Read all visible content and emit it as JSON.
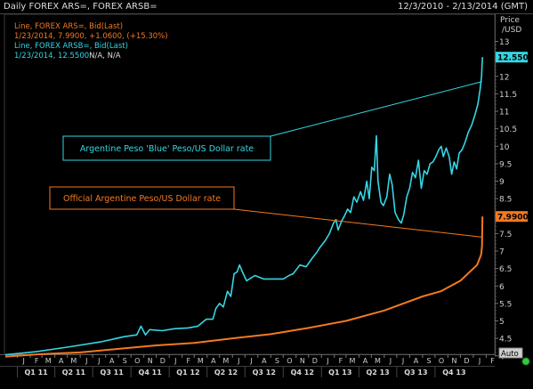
{
  "header": {
    "title": "Daily FOREX ARS=, FOREX ARSB=",
    "date_range": "12/3/2010 - 2/13/2014 (GMT)"
  },
  "legend": {
    "official_name": "Line, FOREX ARS=, Bid(Last)",
    "official_value": "1/23/2014, 7.9900, +1.0600, (+15.30%)",
    "blue_name": "Line, FOREX ARSB=, Bid(Last)",
    "blue_value_prefix": "1/23/2014, 12.5500",
    "blue_value_suffix": "N/A, N/A"
  },
  "price_label": "Price",
  "unit_label": "/USD",
  "auto_label": "Auto",
  "colors": {
    "official": "#f47920",
    "blue": "#35d6e4",
    "background": "#000000",
    "grid": "#2a2a2a"
  },
  "chart_data": {
    "type": "line",
    "title": "Daily FOREX ARS=, FOREX ARSB=",
    "ylabel": "Price /USD",
    "ylim": [
      3.9,
      13.5
    ],
    "yticks": [
      "4",
      "4.5",
      "5",
      "5.5",
      "6",
      "6.5",
      "7",
      "7.5",
      "8",
      "8.5",
      "9",
      "9.5",
      "10",
      "10.5",
      "11",
      "11.5",
      "12",
      "12.5",
      "13"
    ],
    "x_month_ticks": [
      "J",
      "F",
      "M",
      "A",
      "M",
      "J",
      "J",
      "A",
      "S",
      "O",
      "N",
      "D",
      "J",
      "F",
      "M",
      "A",
      "M",
      "J",
      "J",
      "A",
      "S",
      "O",
      "N",
      "D",
      "J",
      "F",
      "M",
      "A",
      "M",
      "J",
      "J",
      "A",
      "S",
      "O",
      "N",
      "D",
      "J",
      "F"
    ],
    "x_quarter_ticks": [
      "Q1 11",
      "Q2 11",
      "Q3 11",
      "Q4 11",
      "Q1 12",
      "Q2 12",
      "Q3 12",
      "Q4 12",
      "Q1 13",
      "Q2 13",
      "Q3 13",
      "Q4 13"
    ],
    "x_range": [
      "2010-12-03",
      "2014-02-13"
    ],
    "grid": false,
    "series": [
      {
        "name": "FOREX ARS=",
        "color": "#f47920",
        "last_value": "7.9900",
        "points": [
          [
            "2010-12-03",
            3.98
          ],
          [
            "2011-03-01",
            4.05
          ],
          [
            "2011-06-01",
            4.1
          ],
          [
            "2011-09-01",
            4.2
          ],
          [
            "2011-12-01",
            4.3
          ],
          [
            "2012-03-01",
            4.37
          ],
          [
            "2012-06-01",
            4.5
          ],
          [
            "2012-09-01",
            4.62
          ],
          [
            "2012-12-01",
            4.8
          ],
          [
            "2013-03-01",
            5.0
          ],
          [
            "2013-06-01",
            5.3
          ],
          [
            "2013-09-01",
            5.7
          ],
          [
            "2013-10-15",
            5.85
          ],
          [
            "2013-12-01",
            6.15
          ],
          [
            "2014-01-10",
            6.6
          ],
          [
            "2014-01-20",
            6.9
          ],
          [
            "2014-01-22",
            7.15
          ],
          [
            "2014-01-23",
            7.99
          ]
        ]
      },
      {
        "name": "FOREX ARSB=",
        "color": "#35d6e4",
        "last_value": "12.5500",
        "points": [
          [
            "2010-12-03",
            4.03
          ],
          [
            "2011-02-15",
            4.12
          ],
          [
            "2011-05-01",
            4.25
          ],
          [
            "2011-07-20",
            4.4
          ],
          [
            "2011-09-15",
            4.55
          ],
          [
            "2011-10-15",
            4.6
          ],
          [
            "2011-10-25",
            4.85
          ],
          [
            "2011-11-05",
            4.6
          ],
          [
            "2011-11-15",
            4.75
          ],
          [
            "2011-12-15",
            4.72
          ],
          [
            "2012-01-15",
            4.78
          ],
          [
            "2012-02-15",
            4.8
          ],
          [
            "2012-03-10",
            4.85
          ],
          [
            "2012-03-30",
            5.05
          ],
          [
            "2012-04-15",
            5.05
          ],
          [
            "2012-04-22",
            5.35
          ],
          [
            "2012-05-01",
            5.5
          ],
          [
            "2012-05-10",
            5.4
          ],
          [
            "2012-05-20",
            5.85
          ],
          [
            "2012-05-28",
            5.7
          ],
          [
            "2012-06-05",
            6.35
          ],
          [
            "2012-06-12",
            6.4
          ],
          [
            "2012-06-18",
            6.6
          ],
          [
            "2012-06-25",
            6.4
          ],
          [
            "2012-07-05",
            6.15
          ],
          [
            "2012-07-25",
            6.3
          ],
          [
            "2012-08-15",
            6.2
          ],
          [
            "2012-09-10",
            6.2
          ],
          [
            "2012-10-01",
            6.2
          ],
          [
            "2012-10-15",
            6.3
          ],
          [
            "2012-10-25",
            6.35
          ],
          [
            "2012-11-10",
            6.6
          ],
          [
            "2012-11-25",
            6.55
          ],
          [
            "2012-12-10",
            6.8
          ],
          [
            "2012-12-20",
            6.95
          ],
          [
            "2012-12-28",
            7.1
          ],
          [
            "2013-01-10",
            7.3
          ],
          [
            "2013-01-20",
            7.5
          ],
          [
            "2013-01-30",
            7.8
          ],
          [
            "2013-02-05",
            7.9
          ],
          [
            "2013-02-10",
            7.6
          ],
          [
            "2013-02-18",
            7.85
          ],
          [
            "2013-02-25",
            8.0
          ],
          [
            "2013-03-05",
            8.2
          ],
          [
            "2013-03-12",
            8.1
          ],
          [
            "2013-03-20",
            8.55
          ],
          [
            "2013-03-27",
            8.4
          ],
          [
            "2013-04-05",
            8.7
          ],
          [
            "2013-04-12",
            8.45
          ],
          [
            "2013-04-20",
            9.0
          ],
          [
            "2013-04-26",
            8.5
          ],
          [
            "2013-05-02",
            9.4
          ],
          [
            "2013-05-08",
            9.3
          ],
          [
            "2013-05-13",
            10.3
          ],
          [
            "2013-05-17",
            9.0
          ],
          [
            "2013-05-24",
            8.4
          ],
          [
            "2013-05-30",
            8.3
          ],
          [
            "2013-06-07",
            8.55
          ],
          [
            "2013-06-14",
            9.2
          ],
          [
            "2013-06-20",
            8.9
          ],
          [
            "2013-06-27",
            8.1
          ],
          [
            "2013-07-05",
            7.9
          ],
          [
            "2013-07-12",
            7.8
          ],
          [
            "2013-07-18",
            8.05
          ],
          [
            "2013-07-25",
            8.55
          ],
          [
            "2013-08-01",
            8.8
          ],
          [
            "2013-08-08",
            9.25
          ],
          [
            "2013-08-15",
            9.1
          ],
          [
            "2013-08-22",
            9.6
          ],
          [
            "2013-08-29",
            8.8
          ],
          [
            "2013-09-05",
            9.3
          ],
          [
            "2013-09-12",
            9.2
          ],
          [
            "2013-09-19",
            9.5
          ],
          [
            "2013-09-26",
            9.55
          ],
          [
            "2013-10-03",
            9.7
          ],
          [
            "2013-10-10",
            9.9
          ],
          [
            "2013-10-16",
            10.0
          ],
          [
            "2013-10-21",
            9.7
          ],
          [
            "2013-10-28",
            9.95
          ],
          [
            "2013-11-04",
            9.7
          ],
          [
            "2013-11-10",
            9.2
          ],
          [
            "2013-11-16",
            9.55
          ],
          [
            "2013-11-22",
            9.35
          ],
          [
            "2013-11-28",
            9.8
          ],
          [
            "2013-12-05",
            9.9
          ],
          [
            "2013-12-12",
            10.1
          ],
          [
            "2013-12-20",
            10.4
          ],
          [
            "2013-12-28",
            10.6
          ],
          [
            "2014-01-05",
            10.9
          ],
          [
            "2014-01-12",
            11.2
          ],
          [
            "2014-01-17",
            11.6
          ],
          [
            "2014-01-21",
            12.0
          ],
          [
            "2014-01-22",
            12.3
          ],
          [
            "2014-01-23",
            12.55
          ]
        ]
      }
    ],
    "annotations": [
      {
        "text": "Argentine Peso 'Blue' Peso/US Dollar rate",
        "series": "FOREX ARSB="
      },
      {
        "text": "Official Argentine Peso/US Dollar rate",
        "series": "FOREX ARS="
      }
    ]
  }
}
